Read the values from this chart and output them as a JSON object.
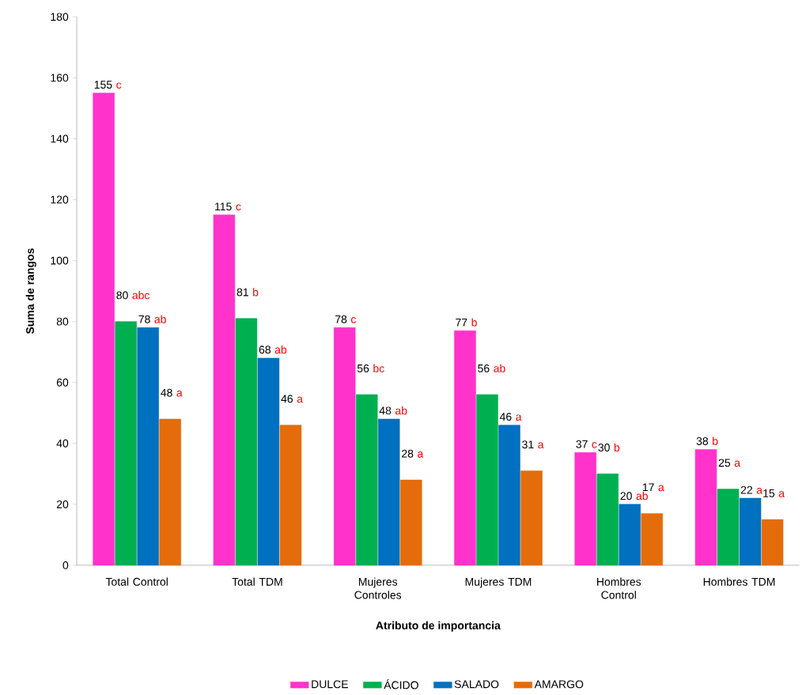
{
  "chart_data": {
    "type": "bar",
    "xlabel": "Atributo de importancia",
    "ylabel": "Suma de rangos",
    "categories": [
      "Total Control",
      "Total TDM",
      "Mujeres Controles",
      "Mujeres TDM",
      "Hombres Control",
      "Hombres TDM"
    ],
    "series": [
      {
        "name": "DULCE",
        "color": "#ff33cc",
        "values": [
          155,
          115,
          78,
          77,
          37,
          38
        ]
      },
      {
        "name": "ÁCIDO",
        "color": "#00b050",
        "values": [
          80,
          81,
          56,
          56,
          30,
          25
        ]
      },
      {
        "name": "SALADO",
        "color": "#0070c0",
        "values": [
          78,
          68,
          48,
          46,
          20,
          22
        ]
      },
      {
        "name": "AMARGO",
        "color": "#e46c0a",
        "values": [
          48,
          46,
          28,
          31,
          17,
          15
        ]
      }
    ],
    "ylim": [
      0,
      180
    ],
    "yticks": [
      0,
      20,
      40,
      60,
      80,
      100,
      120,
      140,
      160,
      180
    ],
    "data_labels": true,
    "legend": "bottom",
    "grid": false,
    "annotations": [
      "c",
      "c",
      "c",
      "b",
      "c",
      "b",
      "abc",
      "b",
      "bc",
      "ab",
      "b",
      "a",
      "ab",
      "ab",
      "ab",
      "a",
      "ab",
      "a",
      "a",
      "a",
      "a",
      "a",
      "a",
      "a"
    ]
  }
}
